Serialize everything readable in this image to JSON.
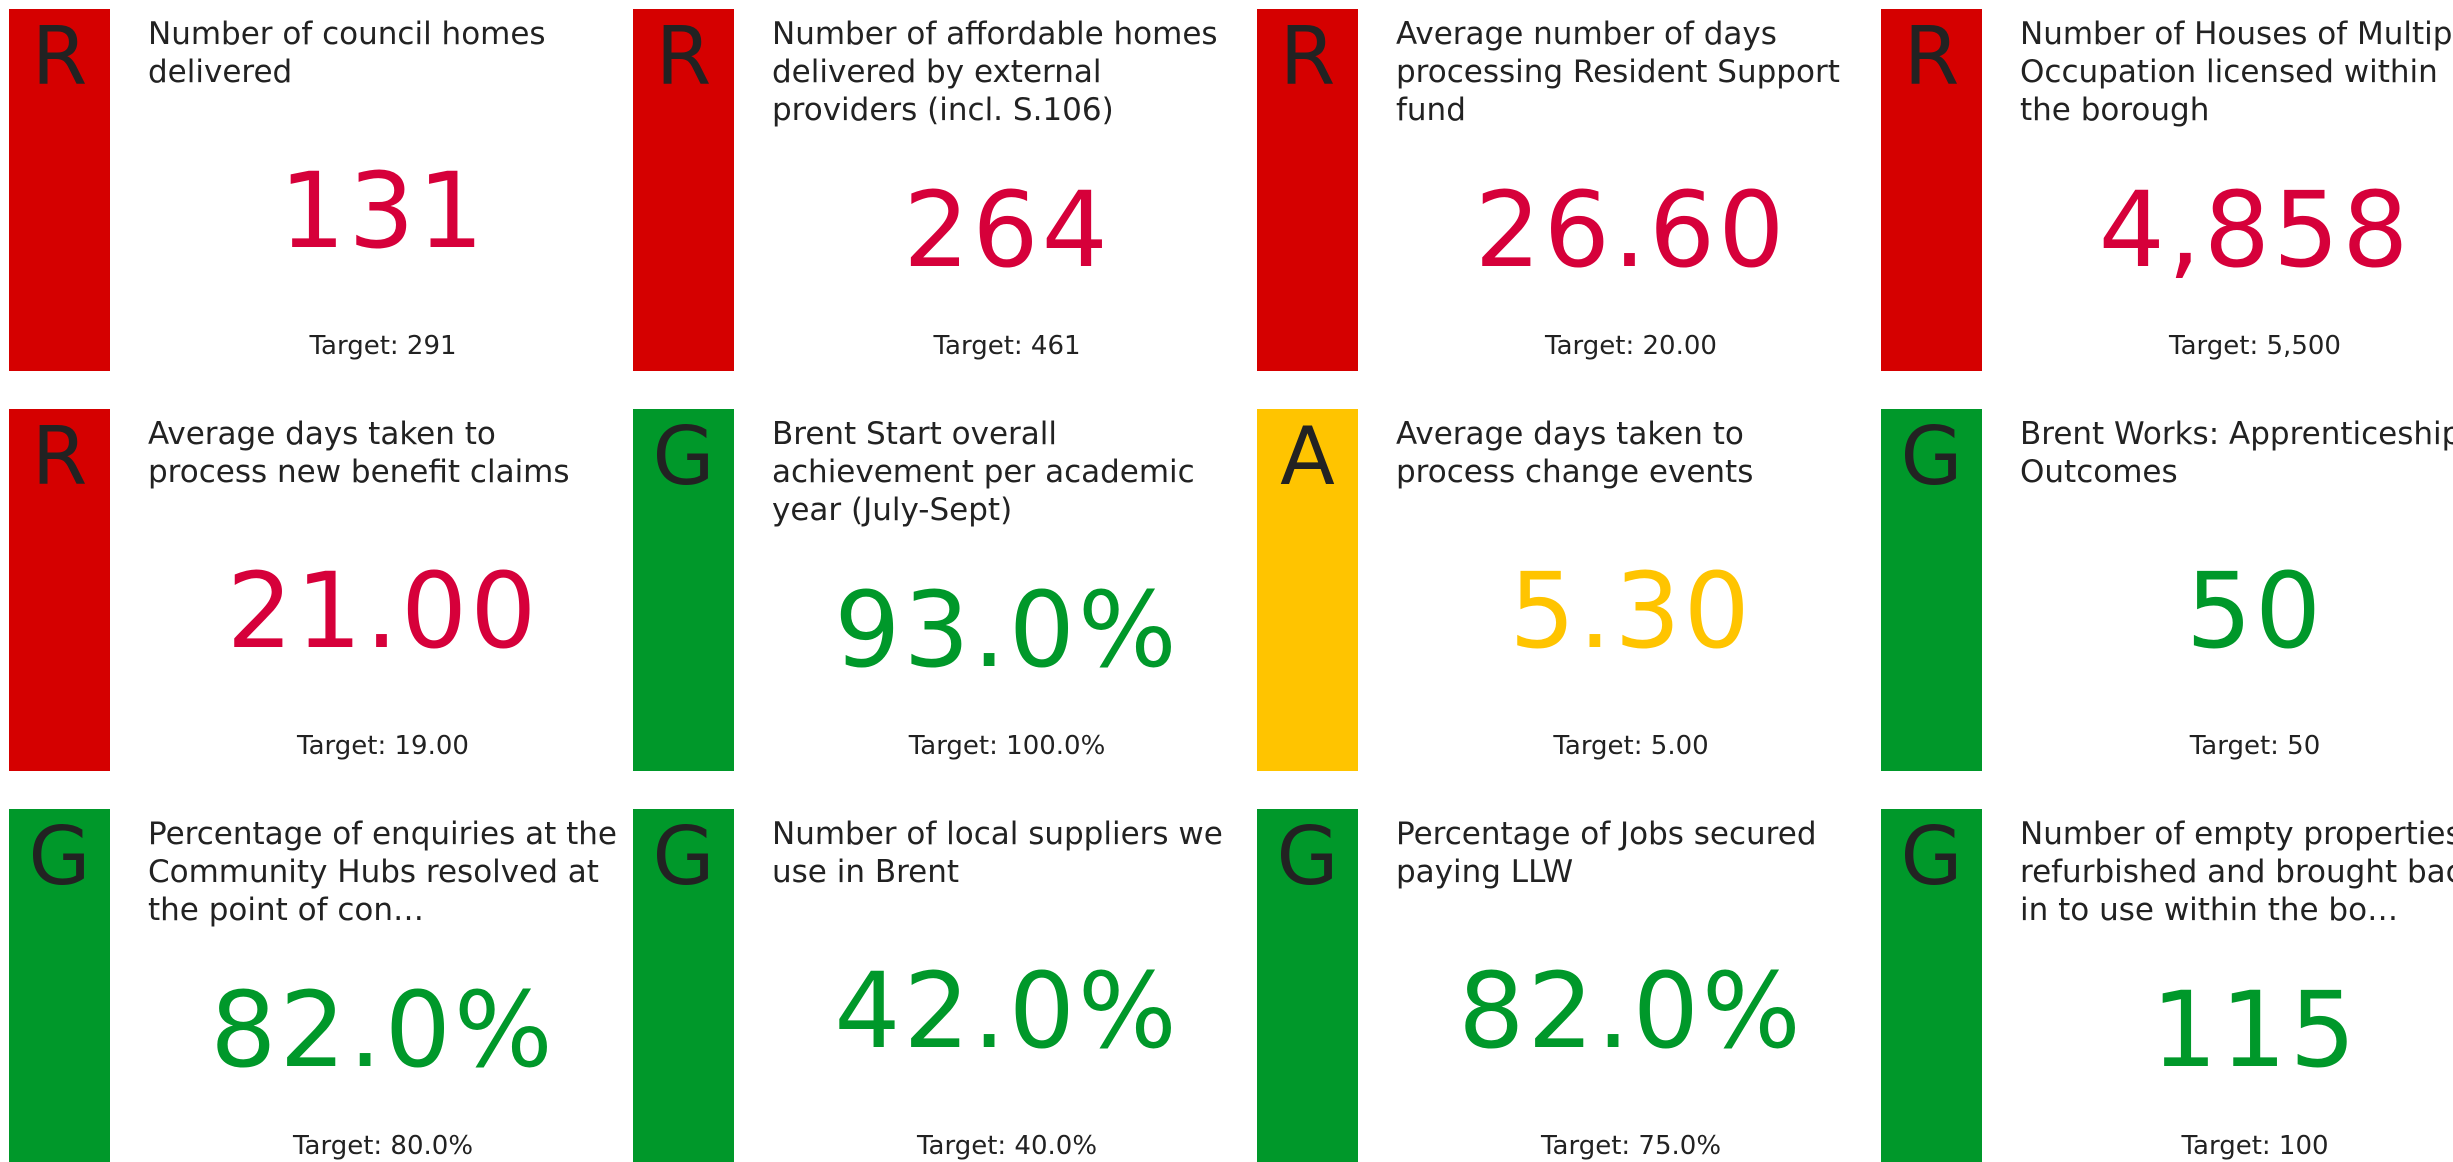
{
  "cards": [
    {
      "status": "R",
      "color": "#d50000",
      "value_color": "#d6003a",
      "title": "Number of council homes delivered",
      "value": "131",
      "target": "Target: 291"
    },
    {
      "status": "R",
      "color": "#d50000",
      "value_color": "#d6003a",
      "title": "Number of affordable homes delivered by external providers (incl. S.106)",
      "value": "264",
      "target": "Target: 461"
    },
    {
      "status": "R",
      "color": "#d50000",
      "value_color": "#d6003a",
      "title": "Average number of days processing Resident Support fund",
      "value": "26.60",
      "target": "Target: 20.00"
    },
    {
      "status": "R",
      "color": "#d50000",
      "value_color": "#d6003a",
      "title": "Number of Houses of Multiple Occupation licensed within the borough",
      "value": "4,858",
      "target": "Target: 5,500"
    },
    {
      "status": "R",
      "color": "#d50000",
      "value_color": "#d6003a",
      "title": "Average days taken to process new benefit claims",
      "value": "21.00",
      "target": "Target: 19.00"
    },
    {
      "status": "G",
      "color": "#00982a",
      "value_color": "#00982a",
      "title": "Brent Start overall achievement per academic year (July-Sept)",
      "value": "93.0%",
      "target": "Target: 100.0%"
    },
    {
      "status": "A",
      "color": "#ffc400",
      "value_color": "#ffc400",
      "title": "Average days taken to process change events",
      "value": "5.30",
      "target": "Target: 5.00"
    },
    {
      "status": "G",
      "color": "#00982a",
      "value_color": "#00982a",
      "title": "Brent Works: Apprenticeship Outcomes",
      "value": "50",
      "target": "Target: 50"
    },
    {
      "status": "G",
      "color": "#00982a",
      "value_color": "#00982a",
      "title": "Percentage of enquiries at the Community Hubs resolved at the point of con…",
      "value": "82.0%",
      "target": "Target: 80.0%"
    },
    {
      "status": "G",
      "color": "#00982a",
      "value_color": "#00982a",
      "title": "Number of local suppliers we use in Brent",
      "value": "42.0%",
      "target": "Target: 40.0%"
    },
    {
      "status": "G",
      "color": "#00982a",
      "value_color": "#00982a",
      "title": "Percentage of Jobs secured paying LLW",
      "value": "82.0%",
      "target": "Target: 75.0%"
    },
    {
      "status": "G",
      "color": "#00982a",
      "value_color": "#00982a",
      "title": "Number of empty properties refurbished and brought back in to use within the bo…",
      "value": "115",
      "target": "Target: 100"
    }
  ]
}
